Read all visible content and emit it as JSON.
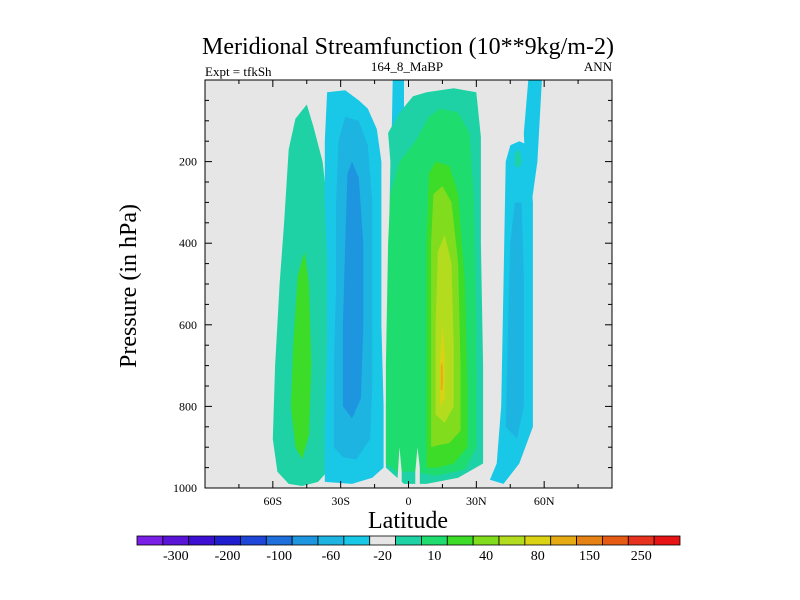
{
  "chart_data": {
    "type": "heatmap",
    "title": "Meridional Streamfunction (10**9kg/m-2)",
    "left_label": "Expt = tfkSh",
    "center_label": "164_8_MaBP",
    "right_label": "ANN",
    "xlabel": "Latitude",
    "ylabel": "Pressure (in hPa)",
    "xlim": [
      -90,
      90
    ],
    "ylim": [
      1000,
      0
    ],
    "x_ticks": [
      {
        "value": -60,
        "label": "60S"
      },
      {
        "value": -30,
        "label": "30S"
      },
      {
        "value": 0,
        "label": "0"
      },
      {
        "value": 30,
        "label": "30N"
      },
      {
        "value": 60,
        "label": "60N"
      }
    ],
    "y_ticks": [
      {
        "value": 200,
        "label": "200"
      },
      {
        "value": 400,
        "label": "400"
      },
      {
        "value": 600,
        "label": "600"
      },
      {
        "value": 800,
        "label": "800"
      },
      {
        "value": 1000,
        "label": "1000"
      }
    ],
    "background_color": "#e6e6e6",
    "colorbar": {
      "colors": [
        "#7a1fe6",
        "#5a14d8",
        "#3c0fd2",
        "#1e1ecf",
        "#1e46d9",
        "#1e6edc",
        "#1e96df",
        "#1eb4e1",
        "#19c8e6",
        "#e6e6e6",
        "#1ed2a5",
        "#1edc6e",
        "#3cdc28",
        "#82dc1e",
        "#b4dc1e",
        "#dcd214",
        "#e6aa14",
        "#e68214",
        "#e65a14",
        "#e6321e",
        "#e61414"
      ],
      "labels": [
        "-300",
        "-200",
        "-100",
        "-60",
        "-20",
        "10",
        "40",
        "80",
        "150",
        "250"
      ],
      "label_positions": [
        1,
        3,
        5,
        7,
        9,
        11,
        13,
        15,
        17,
        19
      ]
    },
    "contours": [
      {
        "name": "south-outer-band",
        "color": "#1ed2a5",
        "pts": [
          [
            -53,
            990
          ],
          [
            -58,
            960
          ],
          [
            -60,
            880
          ],
          [
            -59,
            700
          ],
          [
            -57,
            500
          ],
          [
            -55,
            350
          ],
          [
            -53,
            170
          ],
          [
            -50,
            95
          ],
          [
            -45,
            60
          ],
          [
            -42,
            115
          ],
          [
            -38,
            200
          ],
          [
            -36,
            300
          ],
          [
            -35,
            500
          ],
          [
            -35,
            700
          ],
          [
            -35,
            850
          ],
          [
            -36,
            960
          ],
          [
            -40,
            985
          ],
          [
            -47,
            995
          ]
        ]
      },
      {
        "name": "south-outer-core",
        "color": "#3cdc28",
        "pts": [
          [
            -50,
            900
          ],
          [
            -52,
            800
          ],
          [
            -51,
            650
          ],
          [
            -49,
            480
          ],
          [
            -46,
            420
          ],
          [
            -44,
            500
          ],
          [
            -43,
            700
          ],
          [
            -44,
            870
          ],
          [
            -47,
            930
          ]
        ]
      },
      {
        "name": "south-cyan-band",
        "color": "#19c8e6",
        "pts": [
          [
            -37,
            985
          ],
          [
            -37,
            850
          ],
          [
            -36,
            650
          ],
          [
            -36,
            450
          ],
          [
            -37,
            300
          ],
          [
            -37,
            150
          ],
          [
            -36,
            30
          ],
          [
            -28,
            25
          ],
          [
            -22,
            50
          ],
          [
            -18,
            70
          ],
          [
            -14,
            120
          ],
          [
            -12,
            200
          ],
          [
            -12,
            400
          ],
          [
            -12,
            600
          ],
          [
            -11,
            800
          ],
          [
            -11,
            950
          ],
          [
            -16,
            975
          ],
          [
            -25,
            990
          ]
        ]
      },
      {
        "name": "south-blue-band",
        "color": "#1eb4e1",
        "pts": [
          [
            -33,
            900
          ],
          [
            -33,
            700
          ],
          [
            -32,
            500
          ],
          [
            -32,
            300
          ],
          [
            -31,
            150
          ],
          [
            -28,
            90
          ],
          [
            -22,
            100
          ],
          [
            -18,
            160
          ],
          [
            -16,
            300
          ],
          [
            -16,
            500
          ],
          [
            -16,
            750
          ],
          [
            -17,
            880
          ],
          [
            -23,
            930
          ],
          [
            -29,
            925
          ]
        ]
      },
      {
        "name": "south-blue-core",
        "color": "#1e96df",
        "pts": [
          [
            -29,
            800
          ],
          [
            -29,
            600
          ],
          [
            -28,
            400
          ],
          [
            -27,
            230
          ],
          [
            -25,
            200
          ],
          [
            -22,
            240
          ],
          [
            -20,
            400
          ],
          [
            -20,
            600
          ],
          [
            -21,
            780
          ],
          [
            -25,
            830
          ]
        ]
      },
      {
        "name": "north-cyan-band",
        "color": "#19c8e6",
        "pts": [
          [
            36,
            980
          ],
          [
            39,
            940
          ],
          [
            41,
            800
          ],
          [
            42,
            500
          ],
          [
            43,
            200
          ],
          [
            45,
            160
          ],
          [
            49,
            150
          ],
          [
            53,
            160
          ],
          [
            55,
            300
          ],
          [
            55,
            500
          ],
          [
            55,
            850
          ],
          [
            49,
            940
          ],
          [
            42,
            990
          ]
        ]
      },
      {
        "name": "north-blue-band",
        "color": "#1eb4e1",
        "pts": [
          [
            43,
            850
          ],
          [
            44,
            600
          ],
          [
            45,
            400
          ],
          [
            47,
            300
          ],
          [
            50,
            300
          ],
          [
            51,
            480
          ],
          [
            51,
            800
          ],
          [
            48,
            880
          ]
        ]
      },
      {
        "name": "north-high-cyan",
        "color": "#19c8e6",
        "pts": [
          [
            51,
            130
          ],
          [
            53,
            0
          ],
          [
            59,
            0
          ],
          [
            57,
            200
          ],
          [
            54,
            320
          ],
          [
            52,
            250
          ]
        ]
      },
      {
        "name": "north-high-teal",
        "color": "#1ed2a5",
        "pts": [
          [
            47,
            180
          ],
          [
            49,
            170
          ],
          [
            50,
            200
          ],
          [
            49,
            215
          ],
          [
            47,
            210
          ]
        ]
      },
      {
        "name": "equatorial-cyan-left",
        "color": "#19c8e6",
        "pts": [
          [
            -7,
            0
          ],
          [
            -2,
            0
          ],
          [
            -2,
            200
          ],
          [
            -4,
            700
          ],
          [
            -4,
            850
          ],
          [
            -5,
            950
          ],
          [
            -7,
            800
          ],
          [
            -8,
            300
          ]
        ]
      },
      {
        "name": "equatorial-teal",
        "color": "#1ed2a5",
        "pts": [
          [
            -10,
            950
          ],
          [
            -10,
            800
          ],
          [
            -9,
            500
          ],
          [
            -8,
            200
          ],
          [
            -9,
            130
          ],
          [
            -4,
            80
          ],
          [
            2,
            40
          ],
          [
            8,
            30
          ],
          [
            20,
            20
          ],
          [
            30,
            30
          ],
          [
            32,
            140
          ],
          [
            32,
            400
          ],
          [
            33,
            700
          ],
          [
            33,
            940
          ],
          [
            22,
            975
          ],
          [
            8,
            990
          ],
          [
            -2,
            990
          ]
        ]
      },
      {
        "name": "equatorial-green",
        "color": "#1edc6e",
        "pts": [
          [
            -10,
            940
          ],
          [
            -10,
            700
          ],
          [
            -9,
            400
          ],
          [
            -8,
            280
          ],
          [
            -4,
            200
          ],
          [
            3,
            150
          ],
          [
            9,
            90
          ],
          [
            14,
            70
          ],
          [
            22,
            80
          ],
          [
            27,
            130
          ],
          [
            29,
            300
          ],
          [
            30,
            600
          ],
          [
            30,
            900
          ],
          [
            25,
            955
          ],
          [
            12,
            970
          ],
          [
            3,
            960
          ],
          [
            -5,
            960
          ]
        ]
      },
      {
        "name": "equatorial-bright-green",
        "color": "#3cdc28",
        "pts": [
          [
            8,
            950
          ],
          [
            8,
            700
          ],
          [
            8,
            400
          ],
          [
            9,
            230
          ],
          [
            12,
            200
          ],
          [
            18,
            210
          ],
          [
            22,
            280
          ],
          [
            25,
            500
          ],
          [
            26,
            750
          ],
          [
            26,
            900
          ],
          [
            20,
            940
          ],
          [
            13,
            950
          ]
        ]
      },
      {
        "name": "equatorial-lime",
        "color": "#82dc1e",
        "pts": [
          [
            10,
            900
          ],
          [
            10,
            700
          ],
          [
            10,
            400
          ],
          [
            11,
            280
          ],
          [
            15,
            260
          ],
          [
            19,
            300
          ],
          [
            22,
            450
          ],
          [
            23,
            700
          ],
          [
            23,
            860
          ],
          [
            18,
            890
          ],
          [
            13,
            895
          ]
        ]
      },
      {
        "name": "equatorial-yellow-green",
        "color": "#b4dc1e",
        "pts": [
          [
            12,
            820
          ],
          [
            12,
            600
          ],
          [
            13,
            420
          ],
          [
            16,
            380
          ],
          [
            19,
            450
          ],
          [
            20,
            650
          ],
          [
            20,
            800
          ],
          [
            16,
            840
          ]
        ]
      },
      {
        "name": "equatorial-yellow",
        "color": "#dcd214",
        "pts": [
          [
            14,
            800
          ],
          [
            14,
            680
          ],
          [
            15,
            600
          ],
          [
            16,
            680
          ],
          [
            16,
            780
          ]
        ]
      },
      {
        "name": "equatorial-orange",
        "color": "#e6aa14",
        "pts": [
          [
            14.3,
            760
          ],
          [
            14.3,
            700
          ],
          [
            15,
            690
          ],
          [
            15.2,
            730
          ],
          [
            15,
            760
          ]
        ]
      },
      {
        "name": "equatorial-gap-left",
        "color": "#e6e6e6",
        "pts": [
          [
            -5,
            990
          ],
          [
            -4,
            900
          ],
          [
            -3,
            960
          ],
          [
            -3,
            1000
          ],
          [
            -5,
            1000
          ]
        ]
      },
      {
        "name": "equatorial-gap-right",
        "color": "#e6e6e6",
        "pts": [
          [
            3,
            960
          ],
          [
            4,
            900
          ],
          [
            5,
            950
          ],
          [
            5,
            1000
          ],
          [
            3,
            1000
          ]
        ]
      }
    ]
  }
}
